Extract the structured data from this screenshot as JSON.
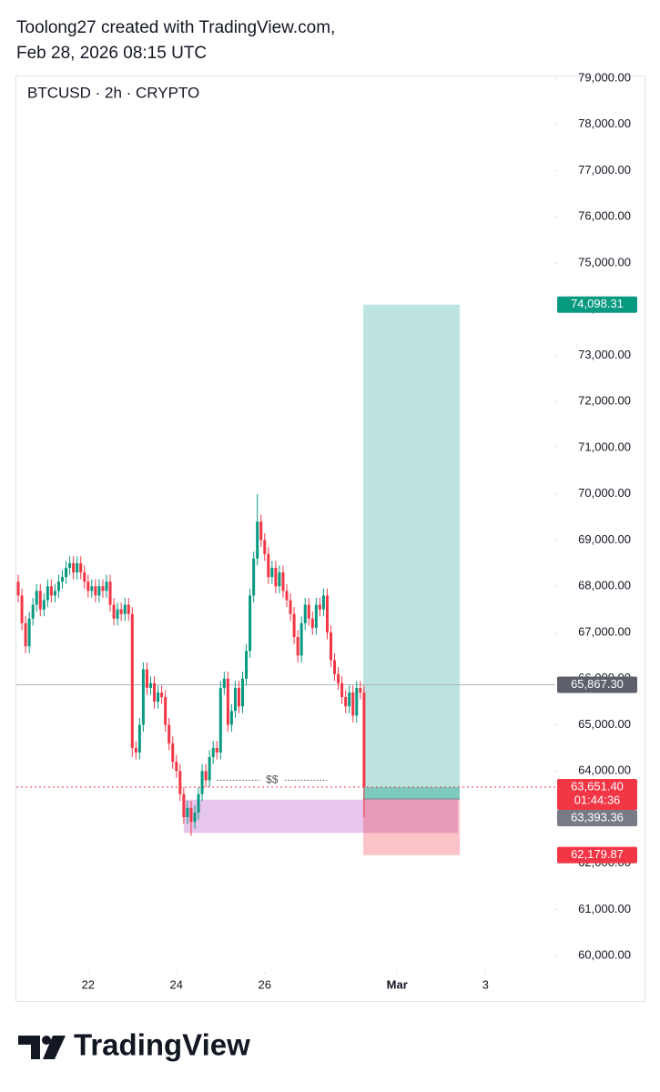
{
  "header": {
    "line1": "Toolong27 created with TradingView.com,",
    "line2": "Feb 28, 2026 08:15 UTC"
  },
  "footer": {
    "brand": "TradingView"
  },
  "chart_data": {
    "type": "candlestick",
    "title": "BTCUSD · 2h · CRYPTO",
    "up_color": "#089981",
    "down_color": "#f23645",
    "open": [
      68100,
      67800,
      67200,
      66700,
      67300,
      67600,
      67900,
      67500,
      67700,
      68000,
      67800,
      67900,
      68100,
      68200,
      68400,
      68500,
      68300,
      68500,
      68300,
      68100,
      67900,
      68000,
      67800,
      68000,
      67900,
      68100,
      67600,
      67300,
      67500,
      67400,
      67600,
      67400,
      64500,
      64400,
      65000,
      66200,
      65800,
      65900,
      65500,
      65700,
      65600,
      65000,
      64600,
      64200,
      64000,
      63500,
      63000,
      63200,
      62900,
      63100,
      63500,
      64000,
      63800,
      64300,
      64500,
      64400,
      65800,
      66000,
      65000,
      65300,
      65800,
      65400,
      66000,
      66600,
      67800,
      68600,
      69400,
      69000,
      68700,
      68200,
      68400,
      68000,
      68300,
      67900,
      67700,
      67400,
      66900,
      66500,
      67200,
      67600,
      67300,
      67100,
      67600,
      67500,
      67800,
      67000,
      66400,
      66100,
      65900,
      65600,
      65400,
      65700,
      65200,
      65800,
      65700
    ],
    "high": [
      68250,
      67950,
      67350,
      67450,
      67750,
      68050,
      68050,
      67850,
      68150,
      68150,
      68050,
      68250,
      68350,
      68550,
      68650,
      68650,
      68650,
      68650,
      68450,
      68250,
      68150,
      68150,
      68150,
      68150,
      68250,
      68250,
      67750,
      67650,
      67650,
      67750,
      67750,
      67550,
      64650,
      65150,
      66350,
      66350,
      66050,
      66050,
      65850,
      65850,
      65750,
      65150,
      64750,
      64350,
      64150,
      63650,
      63350,
      63350,
      63250,
      63650,
      64150,
      64150,
      64450,
      64650,
      64650,
      65950,
      66150,
      66150,
      65450,
      65950,
      65950,
      66150,
      66750,
      67950,
      68750,
      70000,
      69550,
      69150,
      68850,
      68550,
      68550,
      68450,
      68450,
      68050,
      67850,
      67550,
      67050,
      67350,
      67750,
      67750,
      67450,
      67750,
      67750,
      67950,
      67950,
      67150,
      66550,
      66250,
      66050,
      65750,
      65850,
      65850,
      65950,
      65950,
      65850
    ],
    "low": [
      67650,
      67050,
      66550,
      66550,
      67150,
      67450,
      67350,
      67350,
      67550,
      67650,
      67650,
      67750,
      67950,
      68050,
      68250,
      68150,
      68150,
      68150,
      67950,
      67750,
      67750,
      67650,
      67650,
      67750,
      67750,
      67450,
      67150,
      67150,
      67250,
      67250,
      67250,
      64300,
      64250,
      64250,
      64850,
      65650,
      65650,
      65350,
      65350,
      65450,
      64850,
      64450,
      64050,
      63850,
      63350,
      62850,
      62850,
      62600,
      62750,
      62950,
      63350,
      63650,
      63650,
      64150,
      64250,
      64250,
      65650,
      64850,
      64850,
      65150,
      65250,
      65250,
      65850,
      66450,
      67650,
      68450,
      68850,
      68550,
      68050,
      68050,
      67850,
      67850,
      67750,
      67550,
      67250,
      66750,
      66350,
      66350,
      67050,
      67150,
      66950,
      66950,
      67350,
      67350,
      66850,
      66250,
      65950,
      65750,
      65450,
      65250,
      65250,
      65050,
      65050,
      65550,
      63000
    ],
    "close": [
      67800,
      67200,
      66700,
      67300,
      67600,
      67900,
      67500,
      67700,
      68000,
      67800,
      67900,
      68100,
      68200,
      68400,
      68500,
      68300,
      68500,
      68300,
      68100,
      67900,
      68000,
      67800,
      68000,
      67900,
      68100,
      67600,
      67300,
      67500,
      67400,
      67600,
      67400,
      64500,
      64400,
      65000,
      66200,
      65800,
      65900,
      65500,
      65700,
      65600,
      65000,
      64600,
      64200,
      64000,
      63500,
      63000,
      63200,
      62900,
      63100,
      63500,
      64000,
      63800,
      64300,
      64500,
      64400,
      65800,
      66000,
      65000,
      65300,
      65800,
      65400,
      66000,
      66600,
      67800,
      68600,
      69400,
      69000,
      68700,
      68200,
      68400,
      68000,
      68300,
      67900,
      67700,
      67400,
      66900,
      66500,
      67200,
      67600,
      67300,
      67100,
      67600,
      67500,
      67800,
      67000,
      66400,
      66100,
      65900,
      65600,
      65400,
      65700,
      65200,
      65800,
      65700,
      63651.4
    ],
    "xlim": [
      -0.5,
      146
    ],
    "xticks": [
      {
        "value": 19,
        "label": "22"
      },
      {
        "value": 43,
        "label": "24"
      },
      {
        "value": 67,
        "label": "26"
      },
      {
        "value": 103,
        "label": "Mar"
      },
      {
        "value": 127,
        "label": "3"
      }
    ],
    "ylim": [
      59650,
      79060
    ],
    "yticks": [
      {
        "value": 60000,
        "label": "60,000.00"
      },
      {
        "value": 61000,
        "label": "61,000.00"
      },
      {
        "value": 62000,
        "label": "62,000.00"
      },
      {
        "value": 63000,
        "label": "63,000.00"
      },
      {
        "value": 64000,
        "label": "64,000.00"
      },
      {
        "value": 65000,
        "label": "65,000.00"
      },
      {
        "value": 66000,
        "label": "66,000.00"
      },
      {
        "value": 67000,
        "label": "67,000.00"
      },
      {
        "value": 68000,
        "label": "68,000.00"
      },
      {
        "value": 69000,
        "label": "69,000.00"
      },
      {
        "value": 70000,
        "label": "70,000.00"
      },
      {
        "value": 71000,
        "label": "71,000.00"
      },
      {
        "value": 72000,
        "label": "72,000.00"
      },
      {
        "value": 73000,
        "label": "73,000.00"
      },
      {
        "value": 74000,
        "label": "74,000.00"
      },
      {
        "value": 75000,
        "label": "75,000.00"
      },
      {
        "value": 76000,
        "label": "76,000.00"
      },
      {
        "value": 77000,
        "label": "77,000.00"
      },
      {
        "value": 78000,
        "label": "78,000.00"
      },
      {
        "value": 79000,
        "label": "79,000.00"
      }
    ],
    "grid": false,
    "horizontal_line": {
      "value": 65867.3,
      "label": "65,867.30",
      "color": "#5d606b"
    },
    "last_price": {
      "value": 63651.4,
      "label": "63,651.40",
      "countdown": "01:44:36",
      "color": "#f23645"
    },
    "position": {
      "x_start": 93.8,
      "x_end": 120,
      "entry": {
        "value": 63393.36,
        "label": "63,393.36",
        "color": "#787b86"
      },
      "target": {
        "value": 74098.31,
        "label": "74,098.31",
        "color": "#089981"
      },
      "stop": {
        "value": 62179.87,
        "label": "62,179.87",
        "color": "#f23645"
      }
    },
    "zone": {
      "x_start": 45,
      "x_end": 119.5,
      "low": 62660,
      "high": 63380,
      "color": "#d8a8e4"
    },
    "liquidity_line": {
      "x_start": 54,
      "x_end": 84,
      "value": 63800,
      "label": "$$"
    }
  }
}
